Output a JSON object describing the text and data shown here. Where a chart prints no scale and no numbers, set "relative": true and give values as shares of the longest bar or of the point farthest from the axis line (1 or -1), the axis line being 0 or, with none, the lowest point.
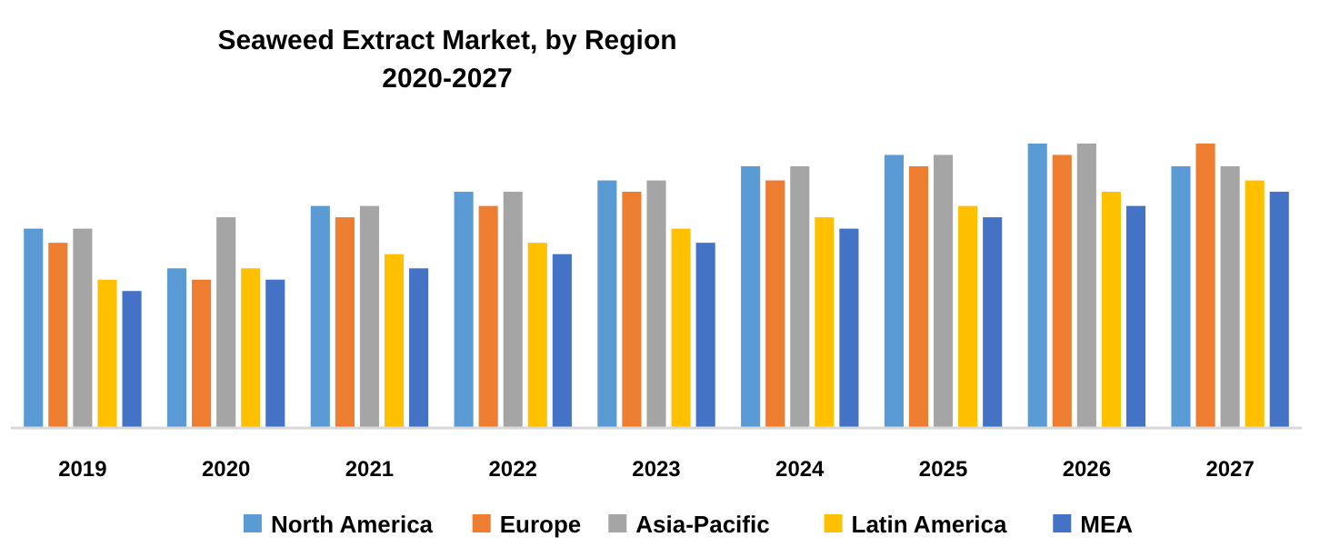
{
  "chart_data": {
    "type": "bar",
    "title": "Seaweed Extract Market, by Region",
    "subtitle": "2020-2027",
    "relative": true,
    "legend": "bottom",
    "categories": [
      "2019",
      "2020",
      "2021",
      "2022",
      "2023",
      "2024",
      "2025",
      "2026",
      "2027"
    ],
    "series": [
      {
        "name": "North America",
        "color": "#5b9bd5",
        "values": [
          0.7,
          0.56,
          0.78,
          0.83,
          0.87,
          0.92,
          0.96,
          1,
          0.92
        ]
      },
      {
        "name": "Europe",
        "color": "#ed7d31",
        "values": [
          0.65,
          0.52,
          0.74,
          0.78,
          0.83,
          0.87,
          0.92,
          0.96,
          1
        ]
      },
      {
        "name": "Asia-Pacific",
        "color": "#a5a5a5",
        "values": [
          0.7,
          0.74,
          0.78,
          0.83,
          0.87,
          0.92,
          0.96,
          1,
          0.92
        ]
      },
      {
        "name": "Latin America",
        "color": "#ffc000",
        "values": [
          0.52,
          0.56,
          0.61,
          0.65,
          0.7,
          0.74,
          0.78,
          0.83,
          0.87
        ]
      },
      {
        "name": "MEA",
        "color": "#4472c4",
        "values": [
          0.48,
          0.52,
          0.56,
          0.61,
          0.65,
          0.7,
          0.74,
          0.78,
          0.83
        ]
      }
    ]
  }
}
